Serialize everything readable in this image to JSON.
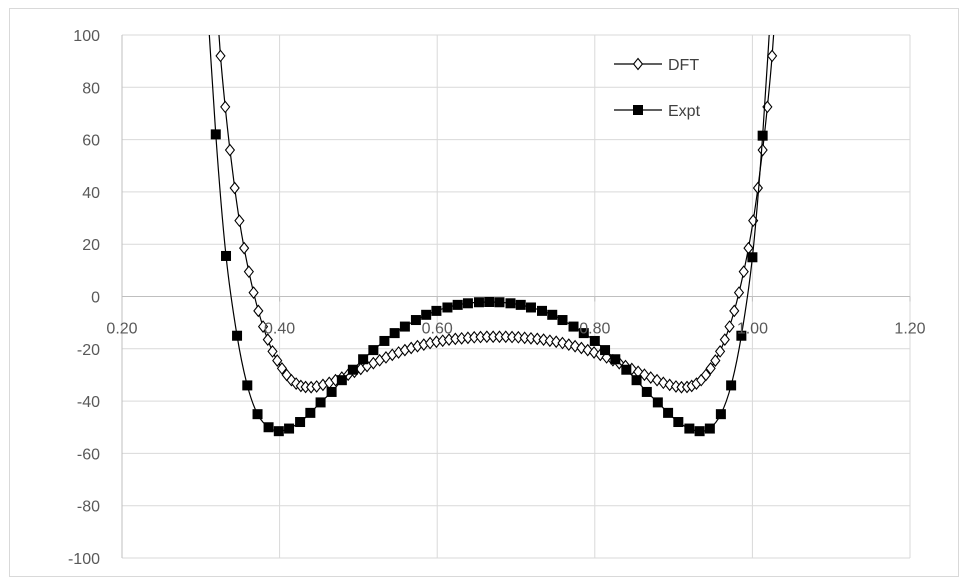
{
  "chart_data": {
    "type": "scatter",
    "title": "",
    "xlabel": "",
    "ylabel": "",
    "xlim": [
      0.2,
      1.2
    ],
    "ylim": [
      -100,
      100
    ],
    "x_ticks": [
      "0.20",
      "0.40",
      "0.60",
      "0.80",
      "1.00",
      "1.20"
    ],
    "y_ticks": [
      "100",
      "80",
      "60",
      "40",
      "20",
      "0",
      "-20",
      "-40",
      "-60",
      "-80",
      "-100"
    ],
    "grid": true,
    "legend_position": "top-right",
    "series": [
      {
        "name": "DFT",
        "marker": "open-diamond",
        "color": "#000000",
        "points": [
          [
            0.325,
            92.0
          ],
          [
            0.331,
            72.5
          ],
          [
            0.337,
            56.0
          ],
          [
            0.343,
            41.5
          ],
          [
            0.349,
            29.0
          ],
          [
            0.355,
            18.5
          ],
          [
            0.361,
            9.5
          ],
          [
            0.367,
            1.5
          ],
          [
            0.373,
            -5.5
          ],
          [
            0.379,
            -11.5
          ],
          [
            0.385,
            -16.5
          ],
          [
            0.391,
            -21.0
          ],
          [
            0.397,
            -24.5
          ],
          [
            0.403,
            -27.5
          ],
          [
            0.409,
            -30.0
          ],
          [
            0.415,
            -32.0
          ],
          [
            0.421,
            -33.3
          ],
          [
            0.427,
            -34.2
          ],
          [
            0.433,
            -34.6
          ],
          [
            0.44,
            -34.7
          ],
          [
            0.447,
            -34.4
          ],
          [
            0.455,
            -33.8
          ],
          [
            0.463,
            -33.0
          ],
          [
            0.471,
            -32.0
          ],
          [
            0.479,
            -31.0
          ],
          [
            0.487,
            -29.9
          ],
          [
            0.495,
            -28.8
          ],
          [
            0.503,
            -27.7
          ],
          [
            0.511,
            -26.6
          ],
          [
            0.519,
            -25.5
          ],
          [
            0.527,
            -24.4
          ],
          [
            0.535,
            -23.3
          ],
          [
            0.543,
            -22.3
          ],
          [
            0.551,
            -21.4
          ],
          [
            0.559,
            -20.5
          ],
          [
            0.567,
            -19.7
          ],
          [
            0.575,
            -19.0
          ],
          [
            0.583,
            -18.4
          ],
          [
            0.591,
            -17.8
          ],
          [
            0.599,
            -17.3
          ],
          [
            0.607,
            -16.9
          ],
          [
            0.615,
            -16.5
          ],
          [
            0.623,
            -16.2
          ],
          [
            0.631,
            -16.0
          ],
          [
            0.639,
            -15.8
          ],
          [
            0.647,
            -15.6
          ],
          [
            0.655,
            -15.5
          ],
          [
            0.663,
            -15.4
          ],
          [
            0.671,
            -15.4
          ],
          [
            0.679,
            -15.4
          ],
          [
            0.687,
            -15.4
          ],
          [
            0.695,
            -15.5
          ],
          [
            0.703,
            -15.6
          ],
          [
            0.711,
            -15.8
          ],
          [
            0.719,
            -16.0
          ],
          [
            0.727,
            -16.2
          ],
          [
            0.735,
            -16.5
          ],
          [
            0.743,
            -16.9
          ],
          [
            0.751,
            -17.3
          ],
          [
            0.759,
            -17.8
          ],
          [
            0.767,
            -18.4
          ],
          [
            0.775,
            -19.0
          ],
          [
            0.783,
            -19.7
          ],
          [
            0.791,
            -20.5
          ],
          [
            0.799,
            -21.4
          ],
          [
            0.807,
            -22.3
          ],
          [
            0.815,
            -23.3
          ],
          [
            0.823,
            -24.4
          ],
          [
            0.831,
            -25.5
          ],
          [
            0.839,
            -26.6
          ],
          [
            0.847,
            -27.7
          ],
          [
            0.855,
            -28.8
          ],
          [
            0.863,
            -29.9
          ],
          [
            0.871,
            -31.0
          ],
          [
            0.879,
            -32.0
          ],
          [
            0.887,
            -33.0
          ],
          [
            0.895,
            -33.8
          ],
          [
            0.903,
            -34.4
          ],
          [
            0.91,
            -34.7
          ],
          [
            0.917,
            -34.6
          ],
          [
            0.923,
            -34.2
          ],
          [
            0.929,
            -33.3
          ],
          [
            0.935,
            -32.0
          ],
          [
            0.941,
            -30.0
          ],
          [
            0.947,
            -27.5
          ],
          [
            0.953,
            -24.5
          ],
          [
            0.959,
            -21.0
          ],
          [
            0.965,
            -16.5
          ],
          [
            0.971,
            -11.5
          ],
          [
            0.977,
            -5.5
          ],
          [
            0.983,
            1.5
          ],
          [
            0.989,
            9.5
          ],
          [
            0.995,
            18.5
          ],
          [
            1.001,
            29.0
          ],
          [
            1.007,
            41.5
          ],
          [
            1.013,
            56.0
          ],
          [
            1.019,
            72.5
          ],
          [
            1.025,
            92.0
          ]
        ]
      },
      {
        "name": "Expt",
        "marker": "filled-square",
        "color": "#000000",
        "points": [
          [
            0.319,
            62.0
          ],
          [
            0.332,
            15.5
          ],
          [
            0.346,
            -15.0
          ],
          [
            0.359,
            -34.0
          ],
          [
            0.372,
            -45.0
          ],
          [
            0.386,
            -50.0
          ],
          [
            0.399,
            -51.5
          ],
          [
            0.412,
            -50.5
          ],
          [
            0.426,
            -48.0
          ],
          [
            0.439,
            -44.5
          ],
          [
            0.452,
            -40.5
          ],
          [
            0.466,
            -36.5
          ],
          [
            0.479,
            -32.0
          ],
          [
            0.493,
            -28.0
          ],
          [
            0.506,
            -24.0
          ],
          [
            0.519,
            -20.5
          ],
          [
            0.533,
            -17.0
          ],
          [
            0.546,
            -14.0
          ],
          [
            0.559,
            -11.5
          ],
          [
            0.573,
            -9.0
          ],
          [
            0.586,
            -7.0
          ],
          [
            0.599,
            -5.5
          ],
          [
            0.613,
            -4.2
          ],
          [
            0.626,
            -3.2
          ],
          [
            0.639,
            -2.6
          ],
          [
            0.653,
            -2.2
          ],
          [
            0.666,
            -2.1
          ],
          [
            0.679,
            -2.2
          ],
          [
            0.693,
            -2.6
          ],
          [
            0.706,
            -3.2
          ],
          [
            0.719,
            -4.2
          ],
          [
            0.733,
            -5.5
          ],
          [
            0.746,
            -7.0
          ],
          [
            0.759,
            -9.0
          ],
          [
            0.773,
            -11.5
          ],
          [
            0.786,
            -14.0
          ],
          [
            0.8,
            -17.0
          ],
          [
            0.813,
            -20.5
          ],
          [
            0.826,
            -24.0
          ],
          [
            0.84,
            -28.0
          ],
          [
            0.853,
            -32.0
          ],
          [
            0.866,
            -36.5
          ],
          [
            0.88,
            -40.5
          ],
          [
            0.893,
            -44.5
          ],
          [
            0.906,
            -48.0
          ],
          [
            0.92,
            -50.5
          ],
          [
            0.933,
            -51.5
          ],
          [
            0.946,
            -50.5
          ],
          [
            0.96,
            -45.0
          ],
          [
            0.973,
            -34.0
          ],
          [
            0.986,
            -15.0
          ],
          [
            1.0,
            15.0
          ],
          [
            1.013,
            61.5
          ]
        ]
      }
    ]
  }
}
